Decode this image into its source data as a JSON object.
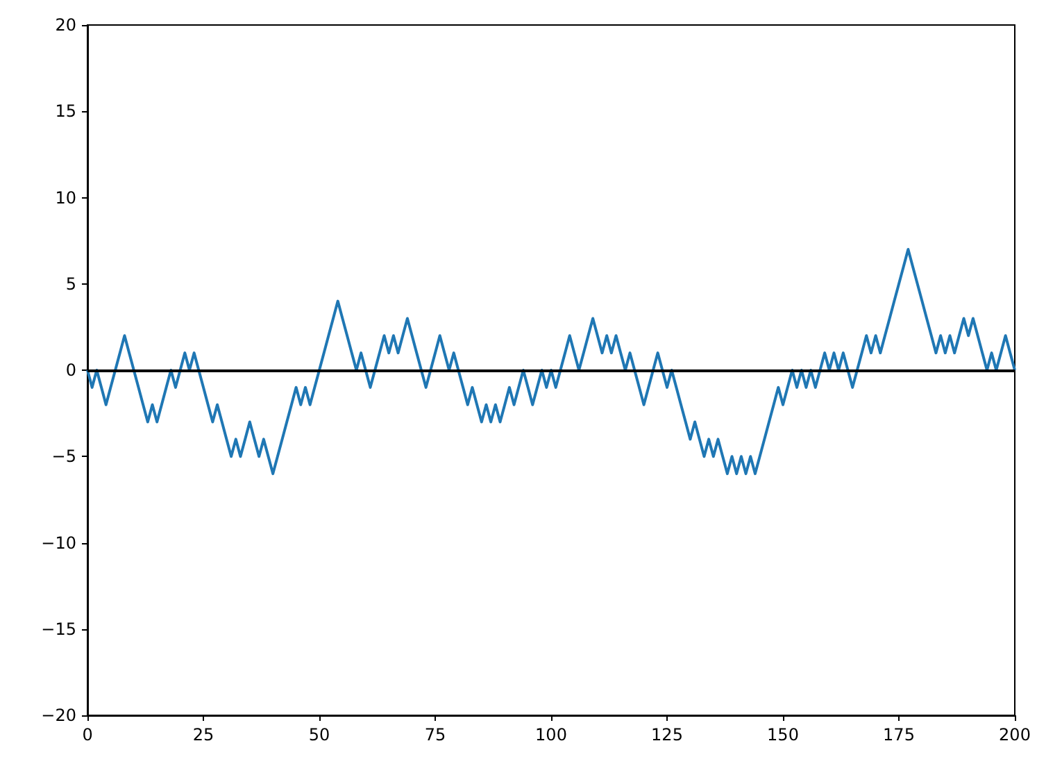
{
  "chart_data": {
    "type": "line",
    "x": [
      0,
      1,
      2,
      3,
      4,
      5,
      6,
      7,
      8,
      9,
      10,
      11,
      12,
      13,
      14,
      15,
      16,
      17,
      18,
      19,
      20,
      21,
      22,
      23,
      24,
      25,
      26,
      27,
      28,
      29,
      30,
      31,
      32,
      33,
      34,
      35,
      36,
      37,
      38,
      39,
      40,
      41,
      42,
      43,
      44,
      45,
      46,
      47,
      48,
      49,
      50,
      51,
      52,
      53,
      54,
      55,
      56,
      57,
      58,
      59,
      60,
      61,
      62,
      63,
      64,
      65,
      66,
      67,
      68,
      69,
      70,
      71,
      72,
      73,
      74,
      75,
      76,
      77,
      78,
      79,
      80,
      81,
      82,
      83,
      84,
      85,
      86,
      87,
      88,
      89,
      90,
      91,
      92,
      93,
      94,
      95,
      96,
      97,
      98,
      99,
      100,
      101,
      102,
      103,
      104,
      105,
      106,
      107,
      108,
      109,
      110,
      111,
      112,
      113,
      114,
      115,
      116,
      117,
      118,
      119,
      120,
      121,
      122,
      123,
      124,
      125,
      126,
      127,
      128,
      129,
      130,
      131,
      132,
      133,
      134,
      135,
      136,
      137,
      138,
      139,
      140,
      141,
      142,
      143,
      144,
      145,
      146,
      147,
      148,
      149,
      150,
      151,
      152,
      153,
      154,
      155,
      156,
      157,
      158,
      159,
      160,
      161,
      162,
      163,
      164,
      165,
      166,
      167,
      168,
      169,
      170,
      171,
      172,
      173,
      174,
      175,
      176,
      177,
      178,
      179,
      180,
      181,
      182,
      183,
      184,
      185,
      186,
      187,
      188,
      189,
      190,
      191,
      192,
      193,
      194,
      195,
      196,
      197,
      198,
      199,
      200
    ],
    "series": [
      {
        "color": "#1f77b4",
        "values": [
          0,
          -1,
          0,
          -1,
          -2,
          -1,
          0,
          1,
          2,
          1,
          0,
          -1,
          -2,
          -3,
          -2,
          -3,
          -2,
          -1,
          0,
          -1,
          0,
          1,
          0,
          1,
          0,
          -1,
          -2,
          -3,
          -2,
          -3,
          -4,
          -5,
          -4,
          -5,
          -4,
          -3,
          -4,
          -5,
          -4,
          -5,
          -6,
          -5,
          -4,
          -3,
          -2,
          -1,
          -2,
          -1,
          -2,
          -1,
          0,
          1,
          2,
          3,
          4,
          3,
          2,
          1,
          0,
          1,
          0,
          -1,
          0,
          1,
          2,
          1,
          2,
          1,
          2,
          3,
          2,
          1,
          0,
          -1,
          0,
          1,
          2,
          1,
          0,
          1,
          0,
          -1,
          -2,
          -1,
          -2,
          -3,
          -2,
          -3,
          -2,
          -3,
          -2,
          -1,
          -2,
          -1,
          0,
          -1,
          -2,
          -1,
          0,
          -1,
          0,
          -1,
          0,
          1,
          2,
          1,
          0,
          1,
          2,
          3,
          2,
          1,
          2,
          1,
          2,
          1,
          0,
          1,
          0,
          -1,
          -2,
          -1,
          0,
          1,
          0,
          -1,
          0,
          -1,
          -2,
          -3,
          -4,
          -3,
          -4,
          -5,
          -4,
          -5,
          -4,
          -5,
          -6,
          -5,
          -6,
          -5,
          -6,
          -5,
          -6,
          -5,
          -4,
          -3,
          -2,
          -1,
          -2,
          -1,
          0,
          -1,
          0,
          -1,
          0,
          -1,
          0,
          1,
          0,
          1,
          0,
          1,
          0,
          -1,
          0,
          1,
          2,
          1,
          2,
          1,
          2,
          3,
          4,
          5,
          6,
          7,
          6,
          5,
          4,
          3,
          2,
          1,
          2,
          1,
          2,
          1,
          2,
          3,
          2,
          3,
          2,
          1,
          0,
          1,
          0,
          1,
          2,
          1,
          0
        ]
      }
    ],
    "xlim": [
      0,
      200
    ],
    "xticks": [
      0,
      25,
      50,
      75,
      100,
      125,
      150,
      175,
      200
    ],
    "ylim": [
      -20,
      20
    ],
    "yticks": [
      -20,
      -15,
      -10,
      -5,
      0,
      5,
      10,
      15,
      20
    ],
    "ref_lines": [
      {
        "axis": "y",
        "value": 0,
        "color": "#000000"
      }
    ],
    "grid": false,
    "marker": "none",
    "line_style": "solid"
  }
}
